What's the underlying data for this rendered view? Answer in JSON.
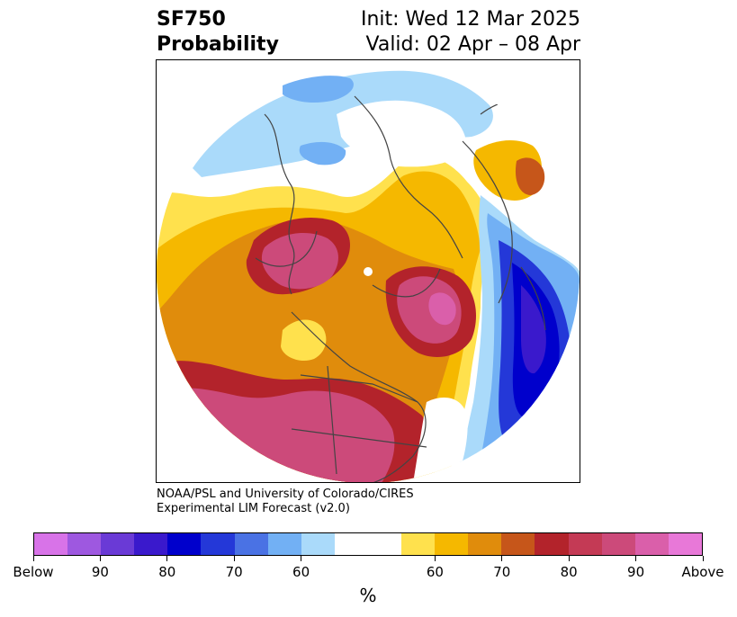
{
  "header": {
    "title_line1": "SF750",
    "title_line2": "Probability",
    "init": "Init: Wed 12 Mar 2025",
    "valid": "Valid: 02 Apr – 08 Apr"
  },
  "credit": {
    "line1": "NOAA/PSL and University of Colorado/CIRES",
    "line2": "Experimental LIM Forecast (v2.0)"
  },
  "colorbar": {
    "colors": [
      "#d873e8",
      "#9e58e0",
      "#6a3ad6",
      "#3a19cc",
      "#0000cc",
      "#2438d8",
      "#4a72e4",
      "#72b0f4",
      "#aadafa",
      "#ffffff",
      "#ffe14d",
      "#f5b800",
      "#e08c0c",
      "#c6561a",
      "#b3232b",
      "#c43a55",
      "#cc4a7a",
      "#da5faa",
      "#e878d8"
    ],
    "ticks": [
      "Below",
      "90",
      "80",
      "70",
      "60",
      "60",
      "70",
      "80",
      "90",
      "Above"
    ],
    "unit": "%"
  },
  "map": {
    "projection": "north-polar-stereographic",
    "field": "SF750 probability",
    "colors": {
      "above_light": "#ffe14d",
      "above_mid": "#f5b800",
      "above_orange": "#e08c0c",
      "above_dark": "#b3232b",
      "above_pink": "#cc4a7a",
      "below_light": "#aadafa",
      "below_mid": "#72b0f4",
      "below_dark": "#0000cc",
      "coastline": "#444444"
    }
  }
}
